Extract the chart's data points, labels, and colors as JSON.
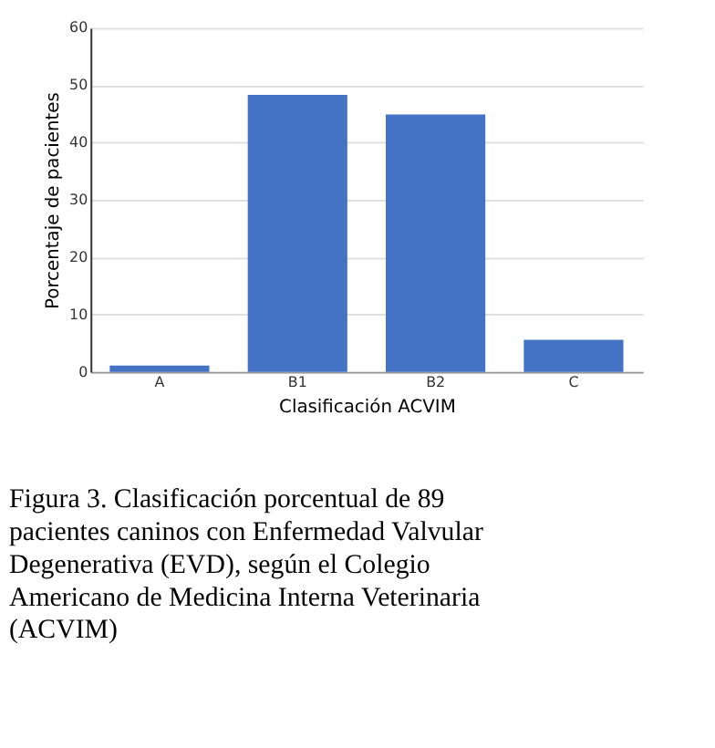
{
  "chart_data": {
    "type": "bar",
    "xlabel": "Clasificación ACVIM",
    "ylabel": "Porcentaje de pacientes",
    "categories": [
      "A",
      "B1",
      "B2",
      "C"
    ],
    "values": [
      1.1,
      48.3,
      44.9,
      5.6
    ],
    "color": "#4472c4",
    "ylim": [
      0,
      60
    ],
    "yticks": [
      0,
      10,
      20,
      30,
      40,
      50,
      60
    ],
    "grid": "y",
    "annotations": [
      "Figura 3. Clasificación porcentual de 89 pacientes caninos con Enfermedad Valvular Degenerativa (EVD), según el Colegio Americano de Medicina Interna Veterinaria (ACVIM)"
    ]
  }
}
